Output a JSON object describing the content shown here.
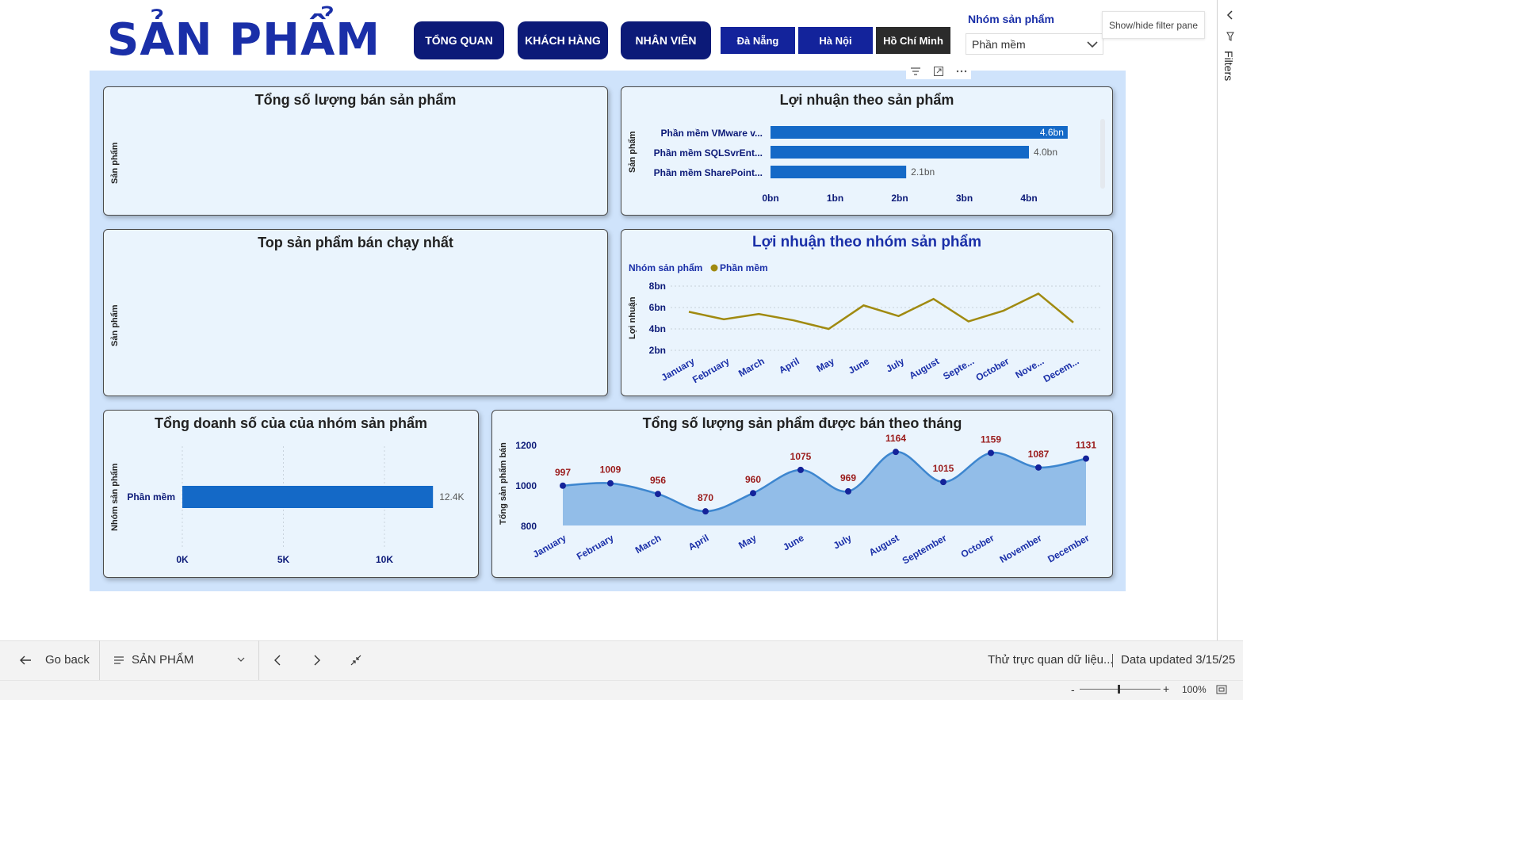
{
  "header": {
    "title": "SẢN PHẨM",
    "nav": [
      "TỔNG QUAN",
      "KHÁCH HÀNG",
      "NHÂN VIÊN"
    ],
    "cities": [
      "Đà Nẵng",
      "Hà Nội",
      "Hồ Chí Minh"
    ],
    "slicer_label": "Nhóm sản phẩm",
    "slicer_value": "Phần mềm",
    "tooltip": "Show/hide filter pane",
    "filters_label": "Filters"
  },
  "cards": {
    "qty_total": {
      "title": "Tổng số lượng bán sản phẩm",
      "ylabel": "Sản phẩm"
    },
    "top_products": {
      "title": "Top sản phẩm bán chạy nhất",
      "ylabel": "Sản phẩm"
    }
  },
  "chart_data": [
    {
      "type": "bar",
      "title": "Lợi nhuận theo sản phẩm",
      "ylabel": "Sản phẩm",
      "orientation": "horizontal",
      "categories": [
        "Phần mềm VMware v...",
        "Phần mềm SQLSvrEnt...",
        "Phần mềm SharePoint..."
      ],
      "values": [
        4.6,
        4.0,
        2.1
      ],
      "data_labels": [
        "4.6bn",
        "4.0bn",
        "2.1bn"
      ],
      "xticks": [
        "0bn",
        "1bn",
        "2bn",
        "3bn",
        "4bn"
      ],
      "xlim": [
        0,
        5
      ],
      "color": "#1469c7"
    },
    {
      "type": "line",
      "title": "Lợi nhuận theo nhóm sản phẩm",
      "ylabel": "Lợi nhuận",
      "legend_title": "Nhóm sản phẩm",
      "legend_position": "top-left",
      "x": [
        "January",
        "February",
        "March",
        "April",
        "May",
        "June",
        "July",
        "August",
        "Septe...",
        "October",
        "Nove...",
        "Decem..."
      ],
      "series": [
        {
          "name": "Phần mềm",
          "color": "#a08a10",
          "values": [
            5.6,
            4.9,
            5.4,
            4.8,
            4.0,
            6.2,
            5.2,
            6.8,
            4.7,
            5.7,
            7.3,
            4.6
          ]
        }
      ],
      "yticks": [
        "8bn",
        "6bn",
        "4bn",
        "2bn"
      ],
      "ylim": [
        2,
        8
      ]
    },
    {
      "type": "bar",
      "title": "Tổng doanh số của của nhóm sản phẩm",
      "ylabel": "Nhóm sản phẩm",
      "orientation": "horizontal",
      "categories": [
        "Phần mềm"
      ],
      "values": [
        12.4
      ],
      "data_labels": [
        "12.4K"
      ],
      "xticks": [
        "0K",
        "5K",
        "10K"
      ],
      "xlim": [
        0,
        15
      ],
      "color": "#1469c7"
    },
    {
      "type": "area",
      "title": "Tổng số lượng sản phẩm được bán theo tháng",
      "ylabel": "Tổng sản phẩm bán",
      "x": [
        "January",
        "February",
        "March",
        "April",
        "May",
        "June",
        "July",
        "August",
        "September",
        "October",
        "November",
        "December"
      ],
      "values": [
        997,
        1009,
        956,
        870,
        960,
        1075,
        969,
        1164,
        1015,
        1159,
        1087,
        1131
      ],
      "yticks": [
        "1200",
        "1000",
        "800"
      ],
      "ylim": [
        800,
        1200
      ],
      "colors": {
        "fill": "#92bde8",
        "line": "#3d86cf",
        "point": "#14239a",
        "label": "#9a1b1b"
      }
    }
  ],
  "bottombar": {
    "go_back": "Go back",
    "page_name": "SẢN PHẨM",
    "report_name": "Thử trực quan dữ liệu...",
    "data_updated": "Data updated 3/15/25",
    "zoom": "100%"
  }
}
